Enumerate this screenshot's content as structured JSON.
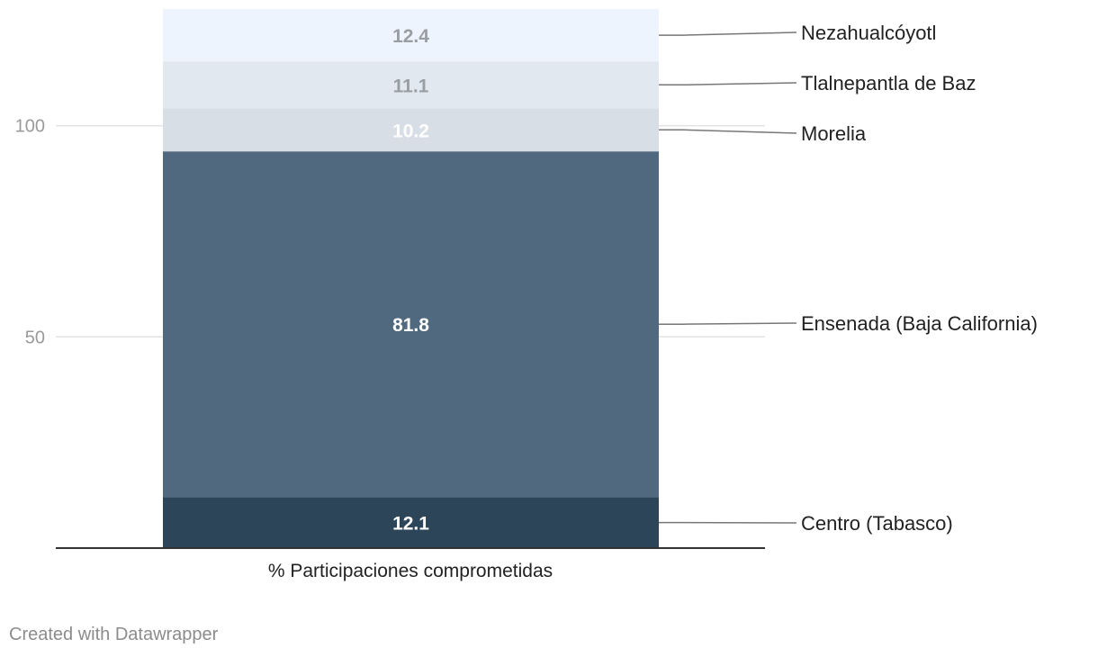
{
  "chart_data": {
    "type": "bar",
    "stacked": true,
    "categories": [
      "% Participaciones comprometidas"
    ],
    "series": [
      {
        "name": "Centro (Tabasco)",
        "values": [
          12.1
        ],
        "color": "#2d4559",
        "label_color": "#ffffff"
      },
      {
        "name": "Ensenada (Baja California)",
        "values": [
          81.8
        ],
        "color": "#50697f",
        "label_color": "#ffffff"
      },
      {
        "name": "Morelia",
        "values": [
          10.2
        ],
        "color": "#d7dee5",
        "label_color": "#ffffff"
      },
      {
        "name": "Tlalnepantla de Baz",
        "values": [
          11.1
        ],
        "color": "#e2e8f0",
        "label_color": "#9a9ea3"
      },
      {
        "name": "Nezahualcóyotl",
        "values": [
          12.4
        ],
        "color": "#edf4fd",
        "label_color": "#9a9ea3"
      }
    ],
    "ylim": [
      0,
      127.6
    ],
    "yticks": [
      50,
      100
    ],
    "grid": true,
    "legend": "right, labels connected to segments"
  },
  "footer": "Created with Datawrapper"
}
